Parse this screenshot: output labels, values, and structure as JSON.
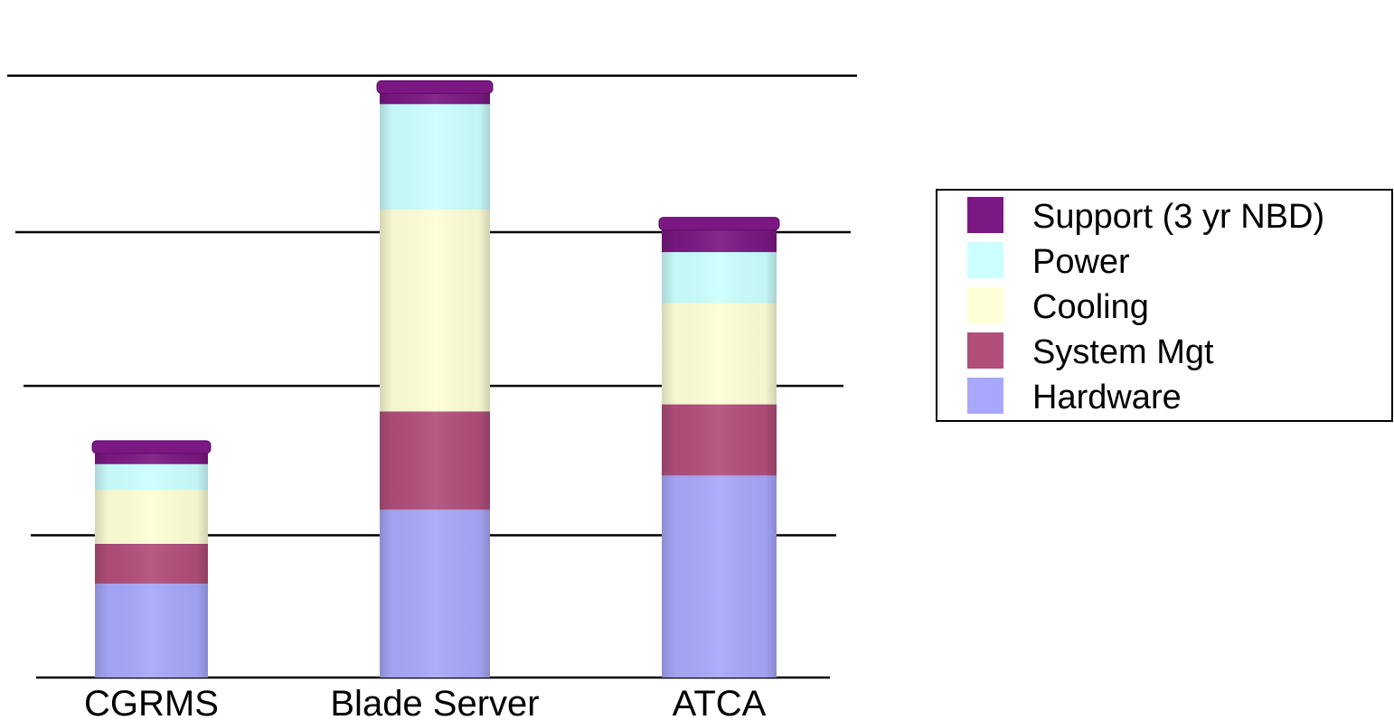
{
  "chart_data": {
    "type": "bar",
    "stacked": true,
    "categories": [
      "CGRMS",
      "Blade Server",
      "ATCA"
    ],
    "series": [
      {
        "name": "Hardware",
        "color": "#a7a7fb",
        "values": [
          66,
          118,
          142
        ]
      },
      {
        "name": "System Mgt",
        "color": "#b14e7a",
        "values": [
          28,
          69,
          50
        ]
      },
      {
        "name": "Cooling",
        "color": "#feffd6",
        "values": [
          38,
          142,
          71
        ]
      },
      {
        "name": "Power",
        "color": "#ccffff",
        "values": [
          18,
          74,
          36
        ]
      },
      {
        "name": "Support (3 yr NBD)",
        "color": "#7b1883",
        "values": [
          12,
          12,
          20
        ]
      }
    ],
    "ylim": [
      0,
      420
    ],
    "gridlines": [
      0,
      100,
      205,
      313,
      423
    ],
    "grid": true,
    "legend": {
      "position": "right",
      "order": [
        "Support (3 yr NBD)",
        "Power",
        "Cooling",
        "System Mgt",
        "Hardware"
      ]
    },
    "title": "",
    "xlabel": "",
    "ylabel": ""
  }
}
